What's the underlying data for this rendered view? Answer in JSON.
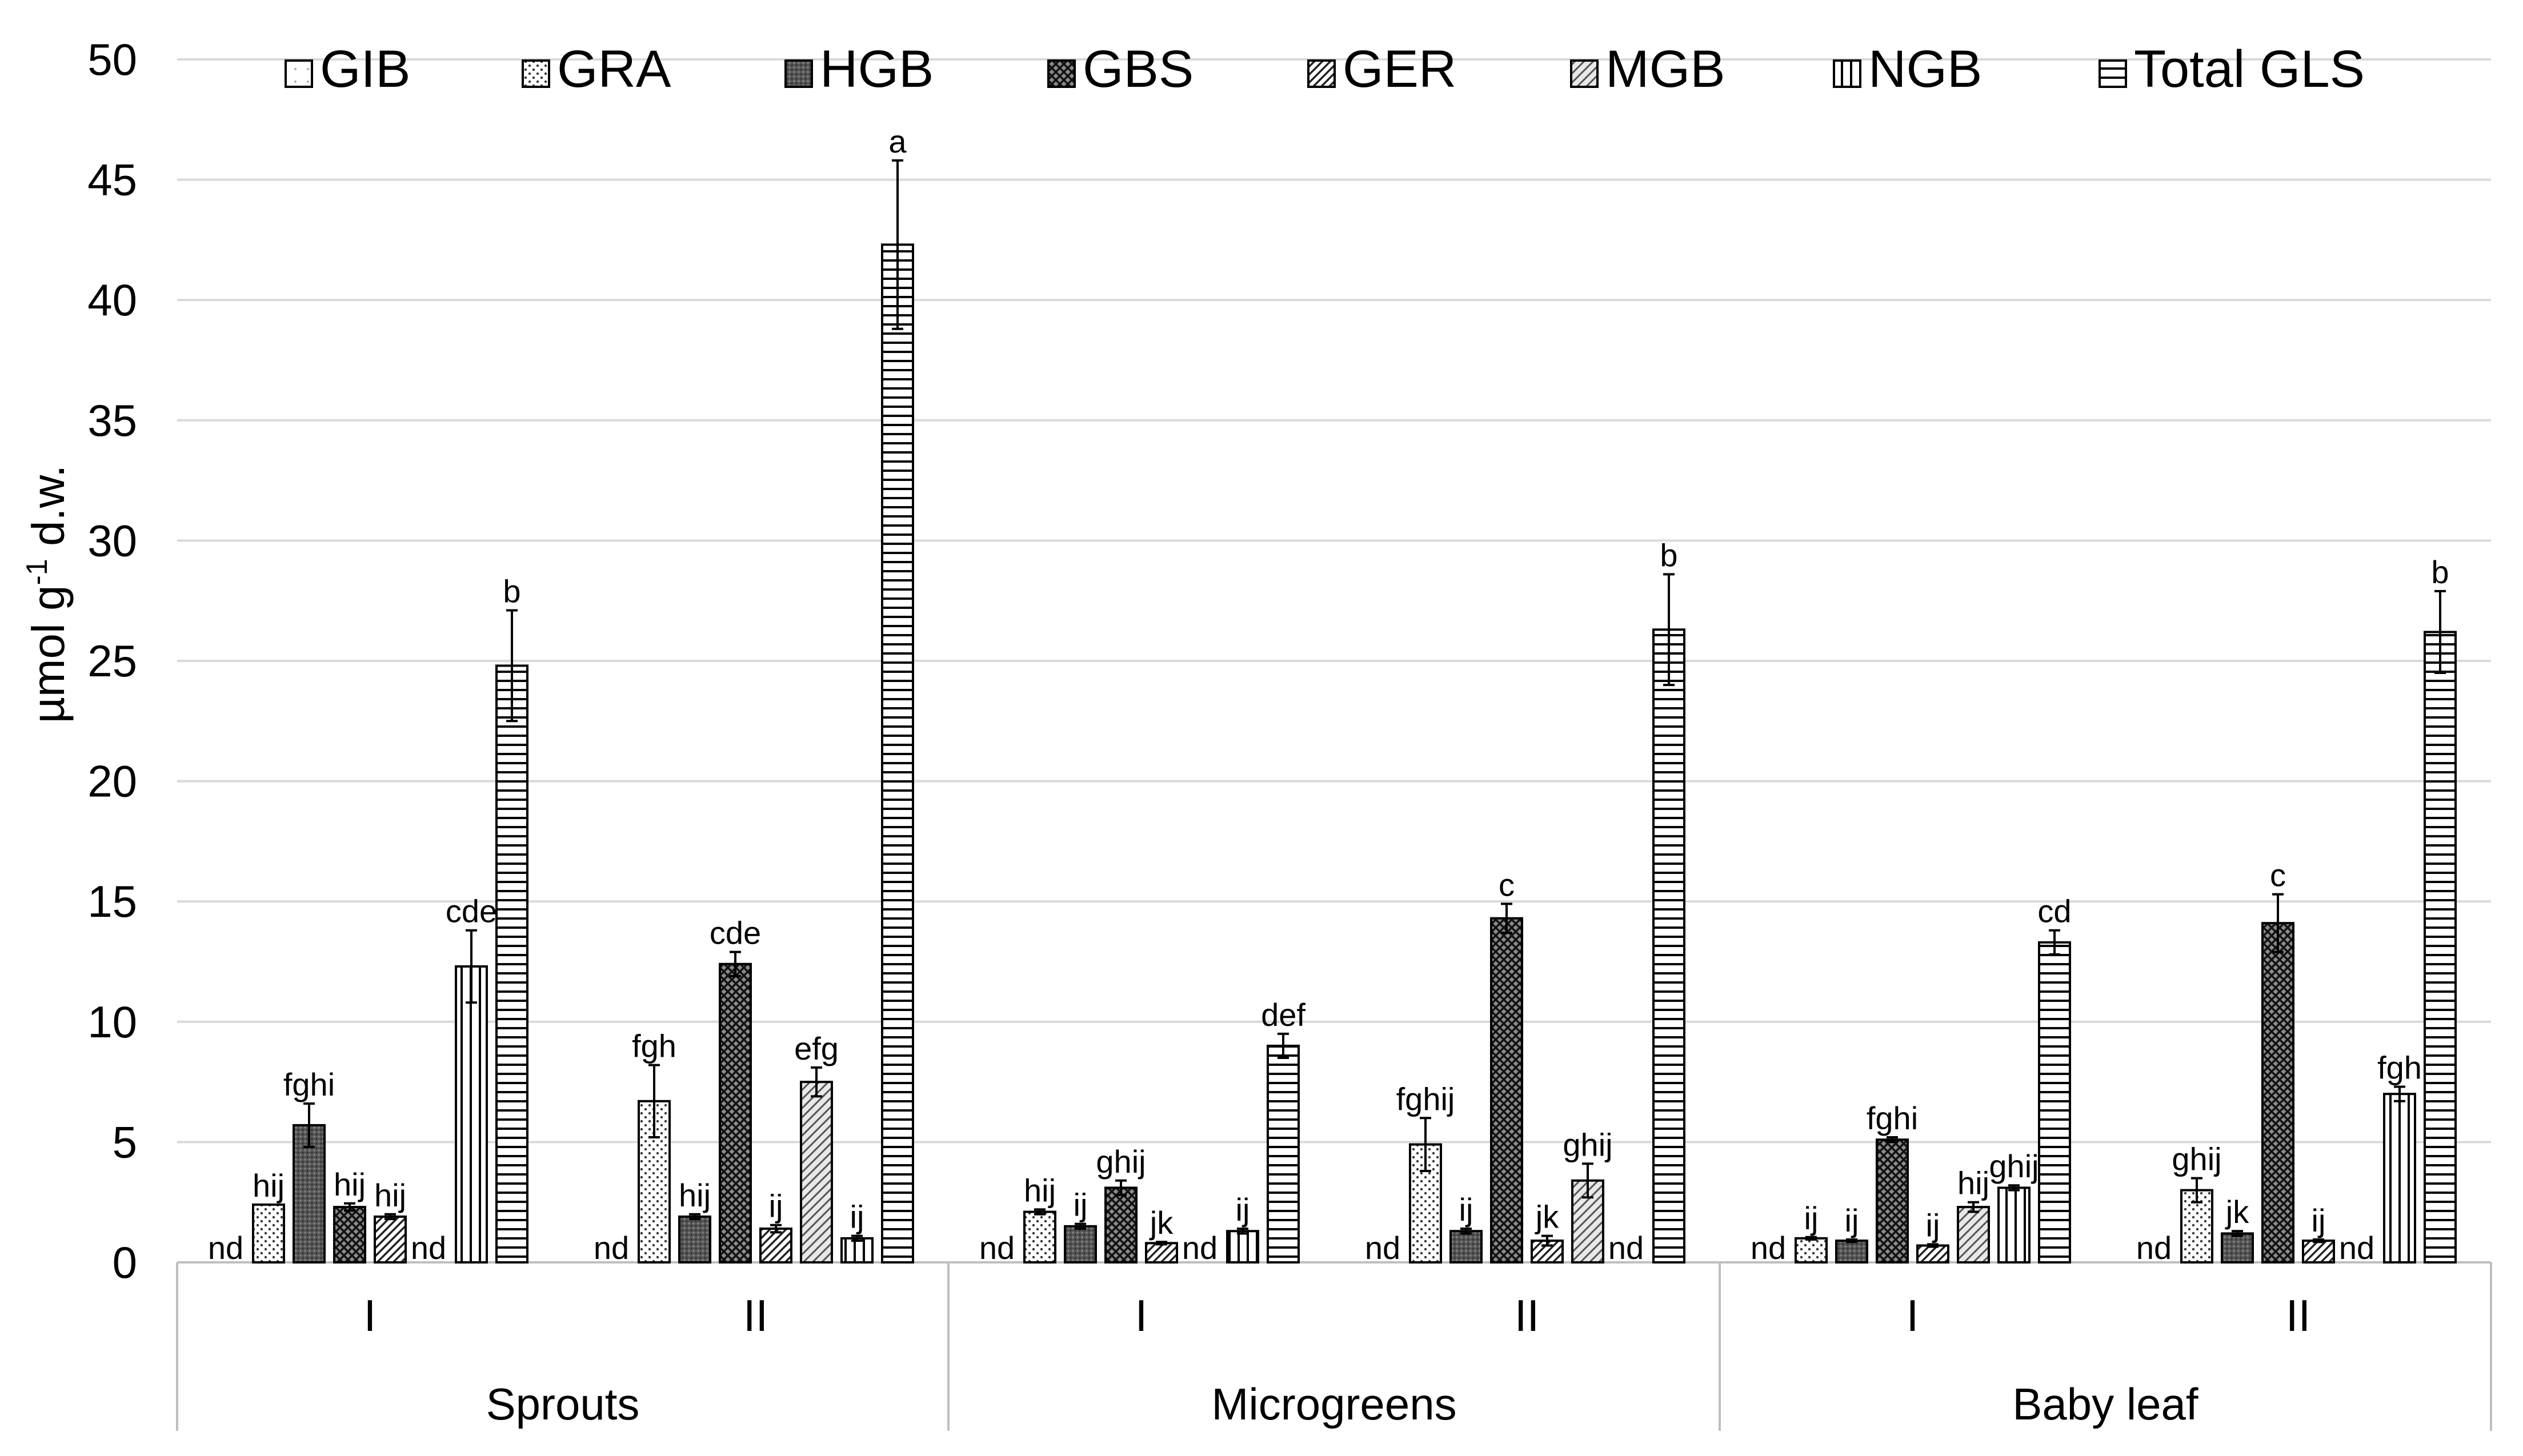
{
  "chart_data": {
    "type": "bar",
    "ylabel_prefix": "µmol g",
    "ylabel_sup": "-1",
    "ylabel_suffix": " d.w.",
    "ylim": [
      0,
      50
    ],
    "yticks": [
      0,
      5,
      10,
      15,
      20,
      25,
      30,
      35,
      40,
      45,
      50
    ],
    "grid": true,
    "legend_position": "top",
    "series_names": [
      "GIB",
      "GRA",
      "HGB",
      "GBS",
      "GER",
      "MGB",
      "NGB",
      "Total GLS"
    ],
    "groups": [
      {
        "name": "Sprouts",
        "subgroups": [
          {
            "name": "I",
            "values": [
              0,
              2.4,
              5.7,
              2.3,
              1.9,
              0,
              12.3,
              24.8
            ],
            "errors": [
              0,
              0,
              0.9,
              0.15,
              0.1,
              0,
              1.5,
              2.3
            ],
            "labels": [
              "nd",
              "hij",
              "fghi",
              "hij",
              "hij",
              "nd",
              "cde",
              "b"
            ]
          },
          {
            "name": "II",
            "values": [
              0,
              6.7,
              1.9,
              12.4,
              1.4,
              7.5,
              1.0,
              42.3
            ],
            "errors": [
              0,
              1.5,
              0.1,
              0.5,
              0.15,
              0.6,
              0.1,
              3.5
            ],
            "labels": [
              "nd",
              "fgh",
              "hij",
              "cde",
              "ij",
              "efg",
              "ij",
              "a"
            ]
          }
        ]
      },
      {
        "name": "Microgreens",
        "subgroups": [
          {
            "name": "I",
            "values": [
              0,
              2.1,
              1.5,
              3.1,
              0.8,
              0,
              1.3,
              9.0
            ],
            "errors": [
              0,
              0.1,
              0.1,
              0.3,
              0.05,
              0,
              0.1,
              0.5
            ],
            "labels": [
              "nd",
              "hij",
              "ij",
              "ghij",
              "jk",
              "nd",
              "ij",
              "def"
            ]
          },
          {
            "name": "II",
            "values": [
              0,
              4.9,
              1.3,
              14.3,
              0.9,
              3.4,
              0,
              26.3
            ],
            "errors": [
              0,
              1.1,
              0.1,
              0.6,
              0.2,
              0.7,
              0,
              2.3
            ],
            "labels": [
              "nd",
              "fghij",
              "ij",
              "c",
              "jk",
              "ghij",
              "nd",
              "b"
            ]
          }
        ]
      },
      {
        "name": "Baby leaf",
        "subgroups": [
          {
            "name": "I",
            "values": [
              0,
              1.0,
              0.9,
              5.1,
              0.7,
              2.3,
              3.1,
              13.3
            ],
            "errors": [
              0,
              0.05,
              0.05,
              0.1,
              0.05,
              0.2,
              0.1,
              0.5
            ],
            "labels": [
              "nd",
              "ij",
              "ij",
              "fghi",
              "ij",
              "hij",
              "ghij",
              "cd"
            ]
          },
          {
            "name": "II",
            "values": [
              0,
              3.0,
              1.2,
              14.1,
              0.9,
              0,
              7.0,
              26.2
            ],
            "errors": [
              0,
              0.5,
              0.1,
              1.2,
              0.05,
              0,
              0.3,
              1.7
            ],
            "labels": [
              "nd",
              "ghij",
              "jk",
              "c",
              "ij",
              "nd",
              "fgh",
              "b"
            ]
          }
        ]
      }
    ]
  }
}
